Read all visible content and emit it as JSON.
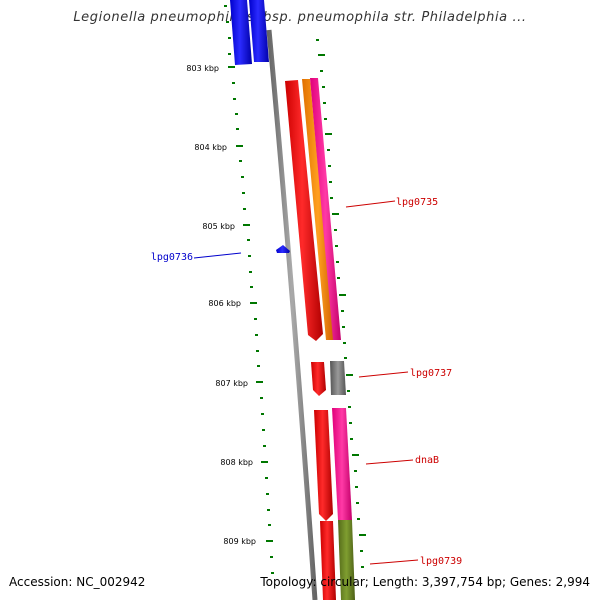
{
  "title": "Legionella pneumophila subsp. pneumophila str. Philadelphia ...",
  "footer": {
    "accession": "Accession: NC_002942",
    "topology": "Topology: circular; Length: 3,397,754 bp; Genes: 2,994"
  },
  "scale": {
    "unit": "kbp",
    "ticks": [
      "803 kbp",
      "804 kbp",
      "805 kbp",
      "806 kbp",
      "807 kbp",
      "808 kbp",
      "809 kbp"
    ]
  },
  "genes": [
    {
      "label": "lpg0735",
      "color": "#cc0000"
    },
    {
      "label": "lpg0736",
      "color": "#0000cc"
    },
    {
      "label": "lpg0737",
      "color": "#cc0000"
    },
    {
      "label": "dnaB",
      "color": "#cc0000"
    },
    {
      "label": "lpg0739",
      "color": "#cc0000"
    }
  ],
  "colors": {
    "backbone": "#808080",
    "tick_marks": "#007700",
    "red_feature": "#ff0000",
    "blue_feature": "#0000ff",
    "orange_feature": "#ff8c00",
    "pink_feature": "#ff1493",
    "gray_feature": "#777777",
    "olive_feature": "#6b8e23"
  }
}
